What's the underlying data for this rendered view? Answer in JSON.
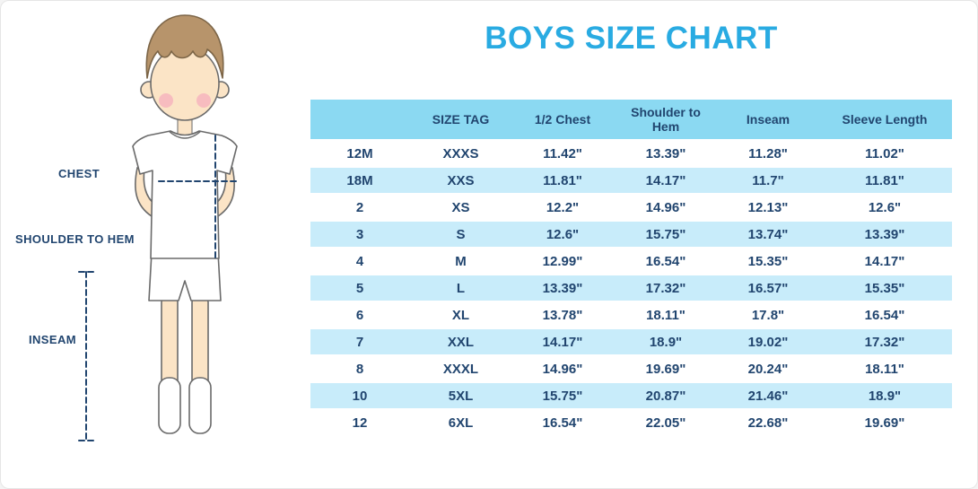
{
  "title": "BOYS SIZE CHART",
  "colors": {
    "title": "#29ABE2",
    "header_bg": "#8BD9F2",
    "row_alt_bg": "#C8ECFA",
    "text": "#21456F"
  },
  "illustration": {
    "labels": {
      "chest": "CHEST",
      "shoulder_to_hem": "SHOULDER TO HEM",
      "inseam": "INSEAM"
    }
  },
  "chart_data": {
    "type": "table",
    "title": "BOYS SIZE CHART",
    "columns": [
      "",
      "SIZE TAG",
      "1/2 Chest",
      "Shoulder to Hem",
      "Inseam",
      "Sleeve Length"
    ],
    "rows": [
      [
        "12M",
        "XXXS",
        "11.42\"",
        "13.39\"",
        "11.28\"",
        "11.02\""
      ],
      [
        "18M",
        "XXS",
        "11.81\"",
        "14.17\"",
        "11.7\"",
        "11.81\""
      ],
      [
        "2",
        "XS",
        "12.2\"",
        "14.96\"",
        "12.13\"",
        "12.6\""
      ],
      [
        "3",
        "S",
        "12.6\"",
        "15.75\"",
        "13.74\"",
        "13.39\""
      ],
      [
        "4",
        "M",
        "12.99\"",
        "16.54\"",
        "15.35\"",
        "14.17\""
      ],
      [
        "5",
        "L",
        "13.39\"",
        "17.32\"",
        "16.57\"",
        "15.35\""
      ],
      [
        "6",
        "XL",
        "13.78\"",
        "18.11\"",
        "17.8\"",
        "16.54\""
      ],
      [
        "7",
        "XXL",
        "14.17\"",
        "18.9\"",
        "19.02\"",
        "17.32\""
      ],
      [
        "8",
        "XXXL",
        "14.96\"",
        "19.69\"",
        "20.24\"",
        "18.11\""
      ],
      [
        "10",
        "5XL",
        "15.75\"",
        "20.87\"",
        "21.46\"",
        "18.9\""
      ],
      [
        "12",
        "6XL",
        "16.54\"",
        "22.05\"",
        "22.68\"",
        "19.69\""
      ]
    ]
  }
}
